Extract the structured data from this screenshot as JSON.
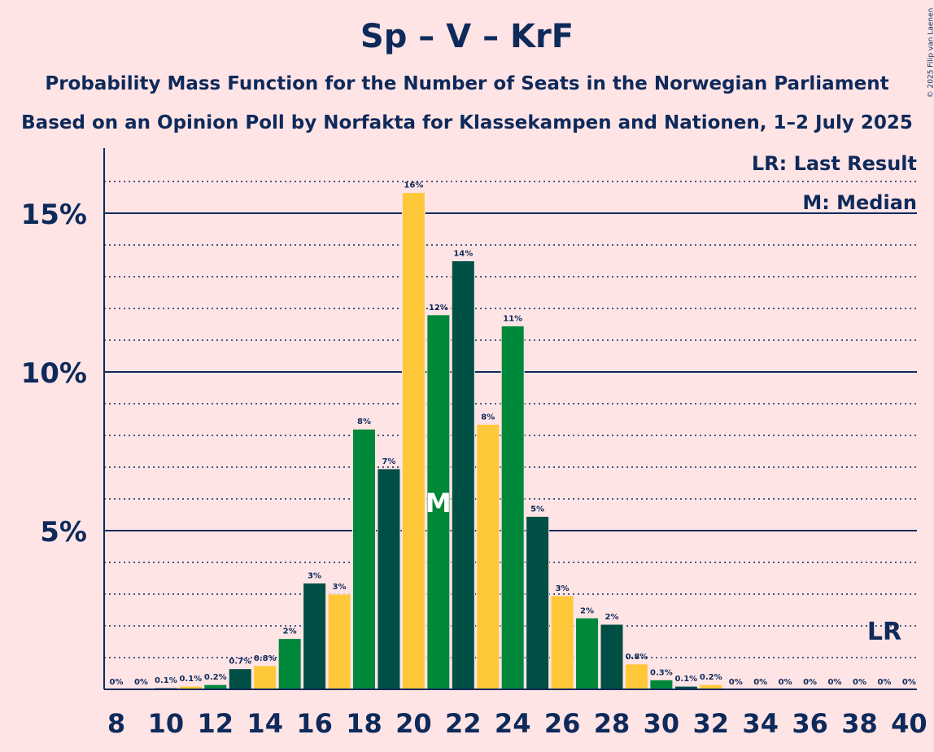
{
  "header": {
    "title": "Sp – V – KrF",
    "subtitle1": "Probability Mass Function for the Number of Seats in the Norwegian Parliament",
    "subtitle2": "Based on an Opinion Poll by Norfakta for Klassekampen and Nationen, 1–2 July 2025",
    "copyright": "© 2025 Filip van Laenen"
  },
  "legend": {
    "last_result": "LR: Last Result",
    "median": "M: Median"
  },
  "colors": {
    "background": "#FFE4E6",
    "navy": "#0E2A5A",
    "dark_green": "#004F44",
    "green": "#00883A",
    "yellow": "#FFC83A"
  },
  "chart_data": {
    "type": "bar",
    "x": [
      8,
      9,
      10,
      11,
      12,
      13,
      14,
      15,
      16,
      17,
      18,
      19,
      20,
      21,
      22,
      23,
      24,
      25,
      26,
      27,
      28,
      29,
      30,
      31,
      32,
      33,
      34,
      35,
      36,
      37,
      38,
      39,
      40
    ],
    "values": [
      0,
      0,
      0.05,
      0.1,
      0.15,
      0.65,
      0.75,
      1.6,
      3.35,
      3.0,
      8.2,
      6.95,
      15.65,
      11.8,
      13.5,
      8.35,
      11.45,
      5.45,
      2.95,
      2.25,
      2.05,
      0.8,
      0.3,
      0.1,
      0.15,
      0,
      0,
      0,
      0,
      0,
      0,
      0,
      0
    ],
    "labels": [
      "0%",
      "0%",
      "0.1%",
      "0.1%",
      "0.2%",
      "0.7%",
      "0.8%",
      "2%",
      "3%",
      "3%",
      "8%",
      "7%",
      "16%",
      "12%",
      "14%",
      "8%",
      "11%",
      "5%",
      "3%",
      "2%",
      "2%",
      "0.8%",
      "0.3%",
      "0.1%",
      "0.2%",
      "0%",
      "0%",
      "0%",
      "0%",
      "0%",
      "0%",
      "0%",
      "0%"
    ],
    "bar_colors": [
      "#004F44",
      "#00883A",
      "#004F44",
      "#FFC83A",
      "#00883A",
      "#004F44",
      "#FFC83A",
      "#00883A",
      "#004F44",
      "#FFC83A",
      "#00883A",
      "#004F44",
      "#FFC83A",
      "#00883A",
      "#004F44",
      "#FFC83A",
      "#00883A",
      "#004F44",
      "#FFC83A",
      "#00883A",
      "#004F44",
      "#FFC83A",
      "#00883A",
      "#004F44",
      "#FFC83A",
      "#00883A",
      "#004F44",
      "#FFC83A",
      "#00883A",
      "#004F44",
      "#FFC83A",
      "#00883A",
      "#004F44"
    ],
    "x_tick_labels": [
      "8",
      "10",
      "12",
      "14",
      "16",
      "18",
      "20",
      "22",
      "24",
      "26",
      "28",
      "30",
      "32",
      "34",
      "36",
      "38",
      "40"
    ],
    "y_tick_labels": [
      "5%",
      "10%",
      "15%"
    ],
    "y_ticks": [
      5,
      10,
      15
    ],
    "ylim": [
      0,
      17
    ],
    "median_seat": 21,
    "median_marker": "M",
    "last_result_seat": 39,
    "last_result_marker": "LR",
    "grid": true
  }
}
